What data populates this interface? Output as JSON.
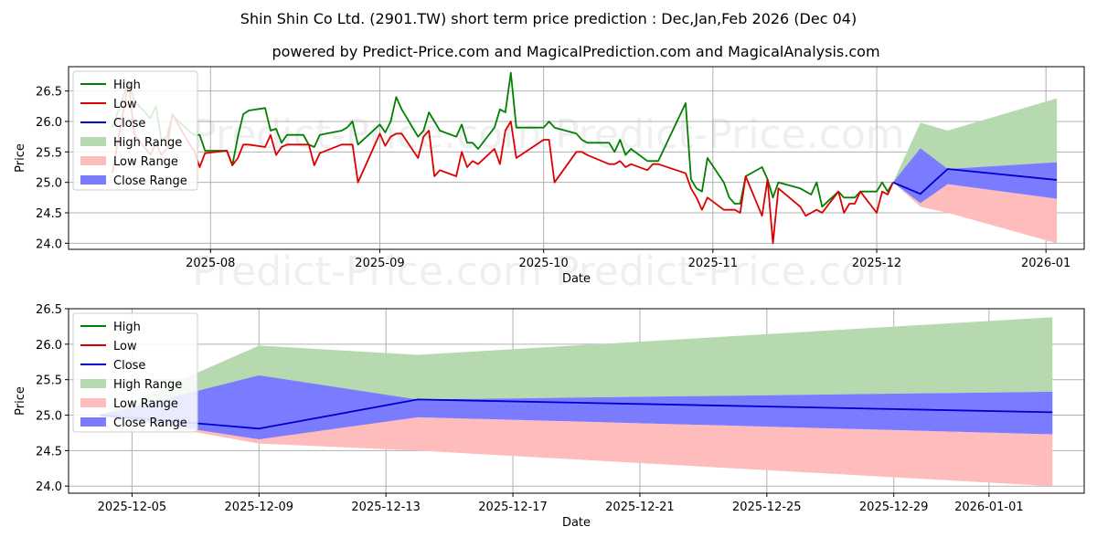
{
  "title": "Shin Shin Co Ltd. (2901.TW) short term price prediction : Dec,Jan,Feb 2026 (Dec 04)",
  "subtitle": "powered by Predict-Price.com and MagicalPrediction.com and MagicalAnalysis.com",
  "watermark": "Predict-Price.com",
  "colors": {
    "high": "#008000",
    "low": "#dd0000",
    "close": "#0000cc",
    "high_range": "#b6d9b0",
    "low_range": "#ffbcbc",
    "close_range": "#7b7bff"
  },
  "chart_data": [
    {
      "type": "line",
      "xlabel": "Date",
      "ylabel": "Price",
      "xlim": [
        "2025-07-06",
        "2026-01-08"
      ],
      "ylim": [
        23.9,
        26.9
      ],
      "yticks": [
        24.0,
        24.5,
        25.0,
        25.5,
        26.0,
        26.5
      ],
      "ytick_labels": [
        "24.0",
        "24.5",
        "25.0",
        "25.5",
        "26.0",
        "26.5"
      ],
      "xticks": [
        "2025-08-01",
        "2025-09-01",
        "2025-10-01",
        "2025-11-01",
        "2025-12-01",
        "2026-01-01"
      ],
      "xtick_labels": [
        "2025-08",
        "2025-09",
        "2025-10",
        "2025-11",
        "2025-12",
        "2026-01"
      ],
      "legend": [
        "High",
        "Low",
        "Close",
        "High Range",
        "Low Range",
        "Close Range"
      ],
      "legend_position": "top-left",
      "high": {
        "x": [
          "2025-07-14",
          "2025-07-17",
          "2025-07-18",
          "2025-07-21",
          "2025-07-22",
          "2025-07-23",
          "2025-07-24",
          "2025-07-25",
          "2025-07-28",
          "2025-07-29",
          "2025-07-30",
          "2025-07-31",
          "2025-08-04",
          "2025-08-05",
          "2025-08-06",
          "2025-08-07",
          "2025-08-08",
          "2025-08-11",
          "2025-08-12",
          "2025-08-13",
          "2025-08-14",
          "2025-08-15",
          "2025-08-18",
          "2025-08-19",
          "2025-08-20",
          "2025-08-21",
          "2025-08-25",
          "2025-08-26",
          "2025-08-27",
          "2025-08-28",
          "2025-09-01",
          "2025-09-02",
          "2025-09-03",
          "2025-09-04",
          "2025-09-05",
          "2025-09-08",
          "2025-09-09",
          "2025-09-10",
          "2025-09-11",
          "2025-09-12",
          "2025-09-15",
          "2025-09-16",
          "2025-09-17",
          "2025-09-18",
          "2025-09-19",
          "2025-09-22",
          "2025-09-23",
          "2025-09-24",
          "2025-09-25",
          "2025-09-26",
          "2025-10-01",
          "2025-10-02",
          "2025-10-03",
          "2025-10-07",
          "2025-10-08",
          "2025-10-09",
          "2025-10-13",
          "2025-10-14",
          "2025-10-15",
          "2025-10-16",
          "2025-10-17",
          "2025-10-20",
          "2025-10-21",
          "2025-10-22",
          "2025-10-27",
          "2025-10-28",
          "2025-10-29",
          "2025-10-30",
          "2025-10-31",
          "2025-11-03",
          "2025-11-04",
          "2025-11-05",
          "2025-11-06",
          "2025-11-07",
          "2025-11-10",
          "2025-11-11",
          "2025-11-12",
          "2025-11-13",
          "2025-11-17",
          "2025-11-18",
          "2025-11-19",
          "2025-11-20",
          "2025-11-21",
          "2025-11-24",
          "2025-11-25",
          "2025-11-26",
          "2025-11-27",
          "2025-11-28",
          "2025-12-01",
          "2025-12-02",
          "2025-12-03",
          "2025-12-04"
        ],
        "y": [
          25.9,
          26.65,
          26.35,
          26.05,
          26.25,
          25.7,
          25.75,
          26.1,
          25.85,
          25.78,
          25.78,
          25.52,
          25.52,
          25.28,
          25.75,
          26.12,
          26.18,
          26.22,
          25.85,
          25.88,
          25.65,
          25.78,
          25.78,
          25.62,
          25.58,
          25.78,
          25.85,
          25.9,
          26.0,
          25.62,
          25.95,
          25.82,
          26.0,
          26.4,
          26.2,
          25.75,
          25.85,
          26.15,
          26.0,
          25.85,
          25.75,
          25.95,
          25.65,
          25.65,
          25.55,
          25.9,
          26.2,
          26.15,
          26.8,
          25.9,
          25.9,
          26.0,
          25.9,
          25.8,
          25.7,
          25.65,
          25.65,
          25.5,
          25.7,
          25.45,
          25.55,
          25.35,
          25.35,
          25.35,
          26.3,
          25.05,
          24.9,
          24.85,
          25.4,
          25.0,
          24.75,
          24.65,
          24.65,
          25.1,
          25.25,
          25.05,
          24.75,
          25.0,
          24.9,
          24.85,
          24.8,
          25.0,
          24.6,
          24.85,
          24.75,
          24.75,
          24.75,
          24.85,
          24.85,
          25.0,
          24.85,
          25.0
        ]
      },
      "low": {
        "x": [
          "2025-07-14",
          "2025-07-17",
          "2025-07-18",
          "2025-07-21",
          "2025-07-22",
          "2025-07-23",
          "2025-07-24",
          "2025-07-25",
          "2025-07-28",
          "2025-07-29",
          "2025-07-30",
          "2025-07-31",
          "2025-08-04",
          "2025-08-05",
          "2025-08-06",
          "2025-08-07",
          "2025-08-08",
          "2025-08-11",
          "2025-08-12",
          "2025-08-13",
          "2025-08-14",
          "2025-08-15",
          "2025-08-18",
          "2025-08-19",
          "2025-08-20",
          "2025-08-21",
          "2025-08-25",
          "2025-08-26",
          "2025-08-27",
          "2025-08-28",
          "2025-09-01",
          "2025-09-02",
          "2025-09-03",
          "2025-09-04",
          "2025-09-05",
          "2025-09-08",
          "2025-09-09",
          "2025-09-10",
          "2025-09-11",
          "2025-09-12",
          "2025-09-15",
          "2025-09-16",
          "2025-09-17",
          "2025-09-18",
          "2025-09-19",
          "2025-09-22",
          "2025-09-23",
          "2025-09-24",
          "2025-09-25",
          "2025-09-26",
          "2025-10-01",
          "2025-10-02",
          "2025-10-03",
          "2025-10-07",
          "2025-10-08",
          "2025-10-09",
          "2025-10-13",
          "2025-10-14",
          "2025-10-15",
          "2025-10-16",
          "2025-10-17",
          "2025-10-20",
          "2025-10-21",
          "2025-10-22",
          "2025-10-27",
          "2025-10-28",
          "2025-10-29",
          "2025-10-30",
          "2025-10-31",
          "2025-11-03",
          "2025-11-04",
          "2025-11-05",
          "2025-11-06",
          "2025-11-07",
          "2025-11-10",
          "2025-11-11",
          "2025-11-12",
          "2025-11-13",
          "2025-11-17",
          "2025-11-18",
          "2025-11-19",
          "2025-11-20",
          "2025-11-21",
          "2025-11-24",
          "2025-11-25",
          "2025-11-26",
          "2025-11-27",
          "2025-11-28",
          "2025-12-01",
          "2025-12-02",
          "2025-12-03",
          "2025-12-04"
        ],
        "y": [
          25.15,
          26.65,
          25.8,
          25.45,
          25.65,
          25.45,
          25.55,
          26.12,
          25.65,
          25.52,
          25.25,
          25.48,
          25.52,
          25.28,
          25.4,
          25.62,
          25.62,
          25.58,
          25.78,
          25.45,
          25.58,
          25.62,
          25.62,
          25.62,
          25.28,
          25.48,
          25.62,
          25.62,
          25.62,
          25.0,
          25.8,
          25.6,
          25.75,
          25.8,
          25.8,
          25.4,
          25.75,
          25.85,
          25.1,
          25.2,
          25.1,
          25.5,
          25.25,
          25.35,
          25.3,
          25.55,
          25.3,
          25.85,
          26.0,
          25.4,
          25.7,
          25.7,
          25.0,
          25.5,
          25.5,
          25.45,
          25.3,
          25.3,
          25.35,
          25.25,
          25.3,
          25.2,
          25.3,
          25.3,
          25.15,
          24.9,
          24.75,
          24.55,
          24.75,
          24.55,
          24.55,
          24.55,
          24.5,
          25.1,
          24.45,
          25.05,
          24.0,
          24.9,
          24.6,
          24.45,
          24.5,
          24.55,
          24.5,
          24.85,
          24.5,
          24.65,
          24.65,
          24.85,
          24.5,
          24.85,
          24.8,
          25.0
        ]
      },
      "prediction": {
        "x": [
          "2025-12-04",
          "2025-12-09",
          "2025-12-14",
          "2026-01-03"
        ],
        "close": [
          25.0,
          24.81,
          25.22,
          25.04
        ],
        "high_range_upper": [
          25.0,
          25.98,
          25.85,
          26.38
        ],
        "high_range_lower": [
          25.0,
          25.22,
          25.22,
          25.33
        ],
        "close_range_upper": [
          25.0,
          25.56,
          25.22,
          25.33
        ],
        "close_range_lower": [
          25.0,
          24.66,
          24.97,
          24.73
        ],
        "low_range_upper": [
          25.0,
          24.81,
          24.97,
          24.73
        ],
        "low_range_lower": [
          25.0,
          24.6,
          24.5,
          24.0
        ]
      }
    },
    {
      "type": "line",
      "xlabel": "Date",
      "ylabel": "Price",
      "xlim": [
        "2025-12-03",
        "2026-01-04"
      ],
      "ylim": [
        23.9,
        26.5
      ],
      "yticks": [
        24.0,
        24.5,
        25.0,
        25.5,
        26.0,
        26.5
      ],
      "ytick_labels": [
        "24.0",
        "24.5",
        "25.0",
        "25.5",
        "26.0",
        "26.5"
      ],
      "xticks": [
        "2025-12-05",
        "2025-12-09",
        "2025-12-13",
        "2025-12-17",
        "2025-12-21",
        "2025-12-25",
        "2025-12-29",
        "2026-01-01"
      ],
      "xtick_labels": [
        "2025-12-05",
        "2025-12-09",
        "2025-12-13",
        "2025-12-17",
        "2025-12-21",
        "2025-12-25",
        "2025-12-29",
        "2026-01-01"
      ],
      "legend": [
        "High",
        "Low",
        "Close",
        "High Range",
        "Low Range",
        "Close Range"
      ],
      "legend_position": "top-left",
      "prediction": {
        "x": [
          "2025-12-04",
          "2025-12-09",
          "2025-12-14",
          "2026-01-03"
        ],
        "close": [
          25.0,
          24.81,
          25.22,
          25.04
        ],
        "high_range_upper": [
          25.0,
          25.98,
          25.85,
          26.38
        ],
        "high_range_lower": [
          25.0,
          25.22,
          25.22,
          25.33
        ],
        "close_range_upper": [
          25.0,
          25.56,
          25.22,
          25.33
        ],
        "close_range_lower": [
          25.0,
          24.66,
          24.97,
          24.73
        ],
        "low_range_upper": [
          25.0,
          24.81,
          24.97,
          24.73
        ],
        "low_range_lower": [
          25.0,
          24.6,
          24.5,
          24.0
        ]
      }
    }
  ]
}
